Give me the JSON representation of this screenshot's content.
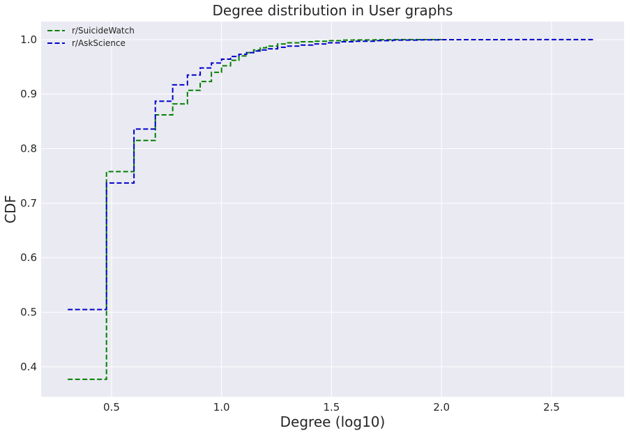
{
  "chart_data": {
    "type": "line",
    "title": "Degree distribution in User graphs",
    "xlabel": "Degree (log10)",
    "ylabel": "CDF",
    "xlim": [
      0.18,
      2.83
    ],
    "ylim": [
      0.345,
      1.033
    ],
    "xticks": [
      0.5,
      1.0,
      1.5,
      2.0,
      2.5
    ],
    "xtick_labels": [
      "0.5",
      "1.0",
      "1.5",
      "2.0",
      "2.5"
    ],
    "yticks": [
      0.4,
      0.5,
      0.6,
      0.7,
      0.8,
      0.9,
      1.0
    ],
    "ytick_labels": [
      "0.4",
      "0.5",
      "0.6",
      "0.7",
      "0.8",
      "0.9",
      "1.0"
    ],
    "grid": true,
    "legend_position": "top-left",
    "series": [
      {
        "name": "r/SuicideWatch",
        "color": "#008000",
        "step": "post",
        "x": [
          0.301,
          0.477,
          0.602,
          0.699,
          0.778,
          0.845,
          0.903,
          0.954,
          1.0,
          1.041,
          1.079,
          1.114,
          1.146,
          1.176,
          1.204,
          1.255,
          1.301,
          1.362,
          1.415,
          1.477,
          1.544,
          1.602,
          1.699,
          1.778,
          1.903,
          2.0
        ],
        "y": [
          0.377,
          0.758,
          0.815,
          0.862,
          0.882,
          0.907,
          0.923,
          0.94,
          0.952,
          0.962,
          0.97,
          0.976,
          0.981,
          0.985,
          0.988,
          0.992,
          0.994,
          0.996,
          0.997,
          0.998,
          0.999,
          0.9994,
          0.9997,
          0.9999,
          1.0,
          1.0
        ]
      },
      {
        "name": "r/AskScience",
        "color": "#0000cc",
        "step": "post",
        "x": [
          0.301,
          0.477,
          0.602,
          0.699,
          0.778,
          0.845,
          0.903,
          0.954,
          1.0,
          1.041,
          1.079,
          1.114,
          1.146,
          1.176,
          1.204,
          1.255,
          1.301,
          1.362,
          1.415,
          1.477,
          1.544,
          1.602,
          1.699,
          1.778,
          1.903,
          2.0,
          2.3,
          2.699
        ],
        "y": [
          0.505,
          0.737,
          0.836,
          0.887,
          0.917,
          0.935,
          0.948,
          0.957,
          0.964,
          0.969,
          0.973,
          0.976,
          0.979,
          0.981,
          0.983,
          0.986,
          0.988,
          0.99,
          0.992,
          0.994,
          0.996,
          0.997,
          0.998,
          0.999,
          0.9995,
          0.9998,
          1.0,
          1.0
        ]
      }
    ]
  }
}
